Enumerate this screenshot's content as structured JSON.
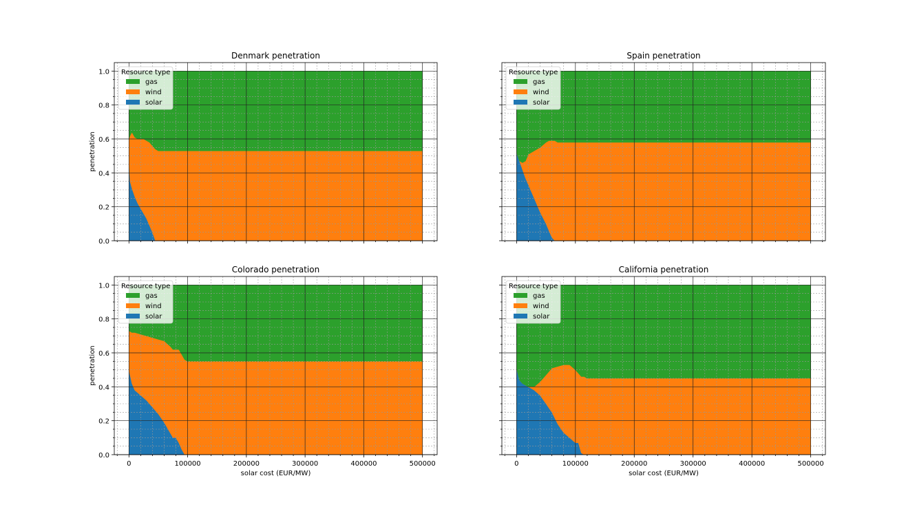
{
  "colors": {
    "gas": "#2ca02c",
    "wind": "#ff7f0e",
    "solar": "#1f77b4"
  },
  "chart_data": [
    {
      "type": "area",
      "title": "Denmark penetration",
      "xlabel": "",
      "ylabel": "penetration",
      "xlim": [
        -25000,
        525000
      ],
      "ylim": [
        0,
        1.05
      ],
      "xticks": [
        "0",
        "100000",
        "200000",
        "300000",
        "400000",
        "500000"
      ],
      "yticks": [
        "0.0",
        "0.2",
        "0.4",
        "0.6",
        "0.8",
        "1.0"
      ],
      "grid": true,
      "legend": {
        "title": "Resource type",
        "position": "top-left",
        "entries": [
          "gas",
          "wind",
          "solar"
        ]
      },
      "x": [
        0,
        2000,
        5000,
        10000,
        15000,
        20000,
        25000,
        30000,
        35000,
        40000,
        45000,
        50000,
        100000,
        200000,
        300000,
        400000,
        500000
      ],
      "series": [
        {
          "name": "solar",
          "values": [
            0.48,
            0.35,
            0.31,
            0.26,
            0.22,
            0.19,
            0.16,
            0.13,
            0.09,
            0.05,
            0.0,
            0.0,
            0.0,
            0.0,
            0.0,
            0.0,
            0.0
          ]
        },
        {
          "name": "wind",
          "values": [
            0.12,
            0.27,
            0.33,
            0.35,
            0.38,
            0.41,
            0.44,
            0.46,
            0.49,
            0.51,
            0.54,
            0.53,
            0.53,
            0.53,
            0.53,
            0.53,
            0.53
          ]
        },
        {
          "name": "gas",
          "values": [
            0.4,
            0.38,
            0.36,
            0.39,
            0.4,
            0.4,
            0.4,
            0.41,
            0.42,
            0.44,
            0.46,
            0.47,
            0.47,
            0.47,
            0.47,
            0.47,
            0.47
          ]
        }
      ]
    },
    {
      "type": "area",
      "title": "Spain penetration",
      "xlabel": "",
      "ylabel": "",
      "xlim": [
        -25000,
        525000
      ],
      "ylim": [
        0,
        1.05
      ],
      "xticks": [
        "0",
        "100000",
        "200000",
        "300000",
        "400000",
        "500000"
      ],
      "yticks": [
        "0.0",
        "0.2",
        "0.4",
        "0.6",
        "0.8",
        "1.0"
      ],
      "grid": true,
      "legend": {
        "title": "Resource type",
        "position": "top-left",
        "entries": [
          "gas",
          "wind",
          "solar"
        ]
      },
      "x": [
        0,
        5000,
        10000,
        15000,
        20000,
        30000,
        40000,
        50000,
        55000,
        60000,
        65000,
        70000,
        100000,
        200000,
        300000,
        400000,
        500000
      ],
      "series": [
        {
          "name": "solar",
          "values": [
            0.52,
            0.47,
            0.42,
            0.37,
            0.33,
            0.25,
            0.17,
            0.1,
            0.06,
            0.02,
            0.0,
            0.0,
            0.0,
            0.0,
            0.0,
            0.0,
            0.0
          ]
        },
        {
          "name": "wind",
          "values": [
            0.0,
            0.0,
            0.04,
            0.1,
            0.18,
            0.28,
            0.38,
            0.48,
            0.53,
            0.57,
            0.59,
            0.58,
            0.58,
            0.58,
            0.58,
            0.58,
            0.58
          ]
        },
        {
          "name": "gas",
          "values": [
            0.48,
            0.53,
            0.54,
            0.53,
            0.49,
            0.47,
            0.45,
            0.42,
            0.41,
            0.41,
            0.41,
            0.42,
            0.42,
            0.42,
            0.42,
            0.42,
            0.42
          ]
        }
      ]
    },
    {
      "type": "area",
      "title": "Colorado penetration",
      "xlabel": "solar cost (EUR/MW)",
      "ylabel": "penetration",
      "xlim": [
        -25000,
        525000
      ],
      "ylim": [
        0,
        1.05
      ],
      "xticks": [
        "0",
        "100000",
        "200000",
        "300000",
        "400000",
        "500000"
      ],
      "yticks": [
        "0.0",
        "0.2",
        "0.4",
        "0.6",
        "0.8",
        "1.0"
      ],
      "grid": true,
      "legend": {
        "title": "Resource type",
        "position": "top-left",
        "entries": [
          "gas",
          "wind",
          "solar"
        ]
      },
      "x": [
        0,
        5000,
        10000,
        20000,
        30000,
        40000,
        50000,
        60000,
        70000,
        75000,
        80000,
        85000,
        90000,
        95000,
        100000,
        200000,
        300000,
        400000,
        500000
      ],
      "series": [
        {
          "name": "solar",
          "values": [
            0.5,
            0.42,
            0.38,
            0.35,
            0.32,
            0.28,
            0.24,
            0.19,
            0.13,
            0.1,
            0.1,
            0.07,
            0.03,
            0.0,
            0.0,
            0.0,
            0.0,
            0.0,
            0.0
          ]
        },
        {
          "name": "wind",
          "values": [
            0.23,
            0.3,
            0.34,
            0.36,
            0.38,
            0.41,
            0.44,
            0.48,
            0.51,
            0.52,
            0.52,
            0.55,
            0.56,
            0.56,
            0.55,
            0.55,
            0.55,
            0.55,
            0.55
          ]
        },
        {
          "name": "gas",
          "values": [
            0.27,
            0.28,
            0.28,
            0.29,
            0.3,
            0.31,
            0.32,
            0.33,
            0.36,
            0.38,
            0.38,
            0.38,
            0.41,
            0.44,
            0.45,
            0.45,
            0.45,
            0.45,
            0.45
          ]
        }
      ]
    },
    {
      "type": "area",
      "title": "California penetration",
      "xlabel": "solar cost (EUR/MW)",
      "ylabel": "",
      "xlim": [
        -25000,
        525000
      ],
      "ylim": [
        0,
        1.05
      ],
      "xticks": [
        "0",
        "100000",
        "200000",
        "300000",
        "400000",
        "500000"
      ],
      "yticks": [
        "0.0",
        "0.2",
        "0.4",
        "0.6",
        "0.8",
        "1.0"
      ],
      "grid": true,
      "legend": {
        "title": "Resource type",
        "position": "top-left",
        "entries": [
          "gas",
          "wind",
          "solar"
        ]
      },
      "x": [
        0,
        5000,
        10000,
        20000,
        30000,
        40000,
        50000,
        60000,
        70000,
        80000,
        90000,
        100000,
        105000,
        110000,
        115000,
        120000,
        200000,
        300000,
        400000,
        500000
      ],
      "series": [
        {
          "name": "solar",
          "values": [
            0.51,
            0.44,
            0.42,
            0.4,
            0.38,
            0.35,
            0.3,
            0.25,
            0.18,
            0.13,
            0.1,
            0.07,
            0.07,
            0.01,
            0.0,
            0.0,
            0.0,
            0.0,
            0.0,
            0.0
          ]
        },
        {
          "name": "wind",
          "values": [
            0.0,
            0.0,
            0.0,
            0.0,
            0.02,
            0.08,
            0.17,
            0.26,
            0.34,
            0.4,
            0.43,
            0.43,
            0.41,
            0.45,
            0.46,
            0.45,
            0.45,
            0.45,
            0.45,
            0.45
          ]
        },
        {
          "name": "gas",
          "values": [
            0.49,
            0.56,
            0.58,
            0.6,
            0.6,
            0.57,
            0.53,
            0.49,
            0.48,
            0.47,
            0.47,
            0.5,
            0.52,
            0.54,
            0.54,
            0.55,
            0.55,
            0.55,
            0.55,
            0.55
          ]
        }
      ]
    }
  ]
}
